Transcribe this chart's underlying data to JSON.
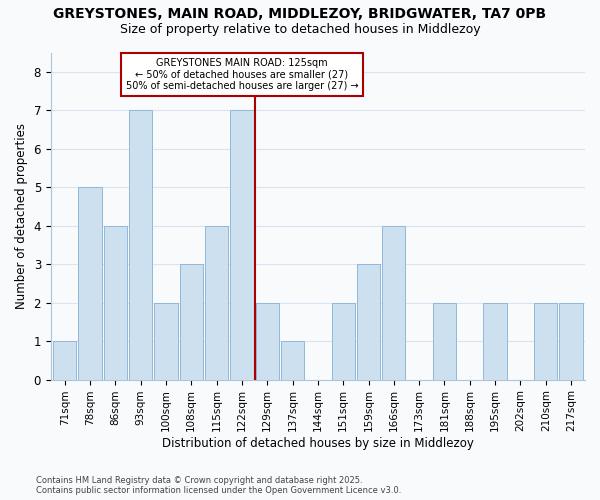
{
  "title": "GREYSTONES, MAIN ROAD, MIDDLEZOY, BRIDGWATER, TA7 0PB",
  "subtitle": "Size of property relative to detached houses in Middlezoy",
  "xlabel": "Distribution of detached houses by size in Middlezoy",
  "ylabel": "Number of detached properties",
  "footer_line1": "Contains HM Land Registry data © Crown copyright and database right 2025.",
  "footer_line2": "Contains public sector information licensed under the Open Government Licence v3.0.",
  "categories": [
    "71sqm",
    "78sqm",
    "86sqm",
    "93sqm",
    "100sqm",
    "108sqm",
    "115sqm",
    "122sqm",
    "129sqm",
    "137sqm",
    "144sqm",
    "151sqm",
    "159sqm",
    "166sqm",
    "173sqm",
    "181sqm",
    "188sqm",
    "195sqm",
    "202sqm",
    "210sqm",
    "217sqm"
  ],
  "values": [
    1,
    5,
    4,
    7,
    2,
    3,
    4,
    7,
    2,
    1,
    0,
    2,
    3,
    4,
    0,
    2,
    0,
    2,
    0,
    2,
    2
  ],
  "subject_bin_index": 7,
  "subject_label": "GREYSTONES MAIN ROAD: 125sqm",
  "annotation_line1": "← 50% of detached houses are smaller (27)",
  "annotation_line2": "50% of semi-detached houses are larger (27) →",
  "bar_color": "#cde0f0",
  "bar_edge_color": "#90b8d8",
  "subject_line_color": "#aa0000",
  "annotation_box_edge_color": "#aa0000",
  "annotation_box_face_color": "#ffffff",
  "grid_color": "#d8e4f0",
  "ylim": [
    0,
    8.5
  ],
  "yticks": [
    0,
    1,
    2,
    3,
    4,
    5,
    6,
    7,
    8
  ],
  "background_color": "#f8fafc",
  "title_fontsize": 10,
  "subtitle_fontsize": 9
}
